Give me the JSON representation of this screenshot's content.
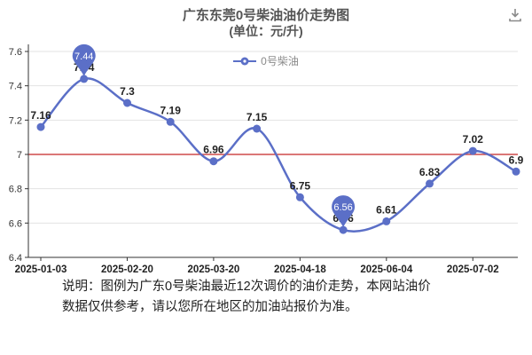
{
  "header": {
    "title": "广东东莞0号柴油油价走势图",
    "subtitle": "(单位：元/升)"
  },
  "legend": {
    "label": "0号柴油"
  },
  "chart_data": {
    "type": "line",
    "title": "广东东莞0号柴油油价走势图",
    "subtitle": "(单位：元/升)",
    "series_name": "0号柴油",
    "values": [
      7.16,
      7.44,
      7.3,
      7.19,
      6.96,
      7.15,
      6.75,
      6.56,
      6.61,
      6.83,
      7.02,
      6.9
    ],
    "point_labels": [
      "7.16",
      "7.44",
      "7.3",
      "7.19",
      "6.96",
      "7.15",
      "6.75",
      "6.56",
      "6.61",
      "6.83",
      "7.02",
      "6.9"
    ],
    "xtick_labels": [
      "2025-01-03",
      "2025-02-20",
      "2025-03-20",
      "2025-04-18",
      "2025-06-04",
      "2025-07-02"
    ],
    "xtick_indices": [
      0,
      2,
      4,
      6,
      8,
      10
    ],
    "yticks": [
      6.4,
      6.6,
      6.8,
      7,
      7.2,
      7.4,
      7.6
    ],
    "ylim": [
      6.4,
      7.6
    ],
    "grid": true,
    "legend_position": "top",
    "line_color": "#5b6fc7",
    "grid_color": "#e3e3e3",
    "ref_line_value": 7,
    "ref_line_color": "#cf4a4a",
    "max_value": "7.44",
    "min_value": "6.56"
  },
  "footer": {
    "line1": "说明：图例为广东0号柴油最近12次调价的油价走势，本网站油价",
    "line2": "数据仅供参考，请以您所在地区的加油站报价为准。"
  }
}
